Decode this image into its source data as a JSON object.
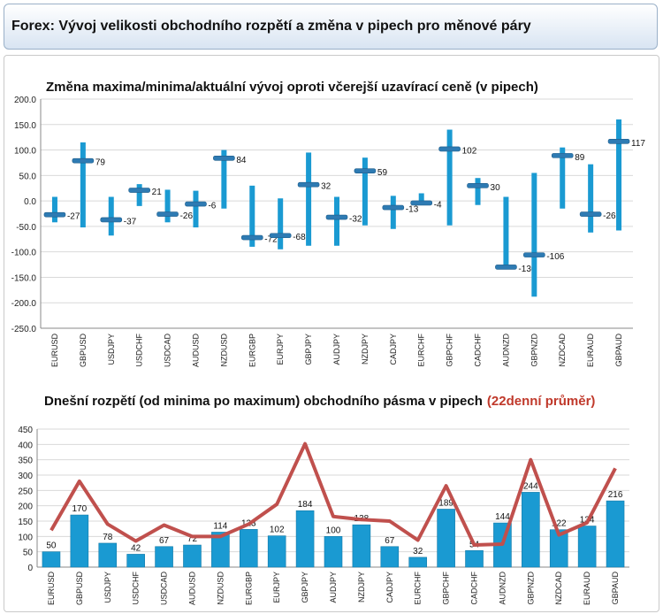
{
  "header": {
    "title": "Forex: Vývoj velikosti obchodního rozpětí a změna v pipech pro měnové páry"
  },
  "chart_data": [
    {
      "type": "bar",
      "title": "Změna maxima/minima/aktuální vývoj oproti včerejší uzavírací ceně (v pipech)",
      "ylim": [
        -250,
        200
      ],
      "yticks": [
        "200.0",
        "150.0",
        "100.0",
        "50.0",
        "0.0",
        "-50.0",
        "-100.0",
        "-150.0",
        "-200.0",
        "-250.0"
      ],
      "ytick_values": [
        200,
        150,
        100,
        50,
        0,
        -50,
        -100,
        -150,
        -200,
        -250
      ],
      "grid": true,
      "categories": [
        "EURUSD",
        "GBPUSD",
        "USDJPY",
        "USDCHF",
        "USDCAD",
        "AUDUSD",
        "NZDUSD",
        "EURGBP",
        "EURJPY",
        "GBPJPY",
        "AUDJPY",
        "NZDJPY",
        "CADJPY",
        "EURCHF",
        "GBPCHF",
        "CADCHF",
        "AUDNZD",
        "GBPNZD",
        "NZDCAD",
        "EURAUD",
        "GBPAUD"
      ],
      "series": [
        {
          "values": [
            8,
            115,
            8,
            33,
            22,
            20,
            100,
            30,
            5,
            95,
            8,
            85,
            10,
            15,
            140,
            45,
            8,
            55,
            105,
            72,
            160
          ]
        },
        {
          "values": [
            -42,
            -52,
            -68,
            -10,
            -42,
            -52,
            -15,
            -90,
            -95,
            -88,
            -88,
            -48,
            -55,
            -8,
            -48,
            -8,
            -132,
            -188,
            -15,
            -62,
            -58
          ]
        },
        {
          "values": [
            -27,
            79,
            -37,
            21,
            -26,
            -6,
            84,
            -72,
            -68,
            32,
            -32,
            59,
            -13,
            -4,
            102,
            30,
            -130,
            -106,
            89,
            -26,
            117
          ]
        }
      ],
      "labels": [
        "-27",
        "79",
        "-37",
        "21",
        "-26",
        "-6",
        "84",
        "-72",
        "-68",
        "32",
        "-32",
        "59",
        "-13",
        "-4",
        "102",
        "30",
        "-130",
        "-106",
        "89",
        "-26",
        "117"
      ],
      "colors": {
        "range": "#1a9ad2",
        "marker": "#2e7bb3"
      }
    },
    {
      "type": "bar",
      "title": "Dnešní rozpětí (od minima po maximum) obchodního pásma v pipech",
      "title_highlight": "(22denní průměr)",
      "ylim": [
        0,
        450
      ],
      "yticks": [
        "450",
        "400",
        "350",
        "300",
        "250",
        "200",
        "150",
        "100",
        "50",
        "0"
      ],
      "ytick_values": [
        450,
        400,
        350,
        300,
        250,
        200,
        150,
        100,
        50,
        0
      ],
      "grid": true,
      "categories": [
        "EURUSD",
        "GBPUSD",
        "USDJPY",
        "USDCHF",
        "USDCAD",
        "AUDUSD",
        "NZDUSD",
        "EURGBP",
        "EURJPY",
        "GBPJPY",
        "AUDJPY",
        "NZDJPY",
        "CADJPY",
        "EURCHF",
        "GBPCHF",
        "CADCHF",
        "AUDNZD",
        "GBPNZD",
        "NZDCAD",
        "EURAUD",
        "GBPAUD"
      ],
      "series": [
        {
          "type": "bar",
          "values": [
            50,
            170,
            78,
            42,
            67,
            72,
            114,
            123,
            102,
            184,
            100,
            138,
            67,
            32,
            189,
            54,
            144,
            244,
            122,
            134,
            216
          ]
        },
        {
          "type": "line",
          "values": [
            120,
            280,
            140,
            85,
            137,
            100,
            100,
            140,
            205,
            402,
            165,
            155,
            150,
            88,
            265,
            72,
            75,
            350,
            105,
            145,
            322
          ]
        }
      ],
      "labels": [
        "50",
        "170",
        "78",
        "42",
        "67",
        "72",
        "114",
        "123",
        "102",
        "184",
        "100",
        "138",
        "67",
        "32",
        "189",
        "54",
        "144",
        "244",
        "122",
        "134",
        "216"
      ],
      "colors": {
        "bar": "#1a9ad2",
        "line": "#c0504d",
        "highlight": "#c0392b"
      }
    }
  ]
}
